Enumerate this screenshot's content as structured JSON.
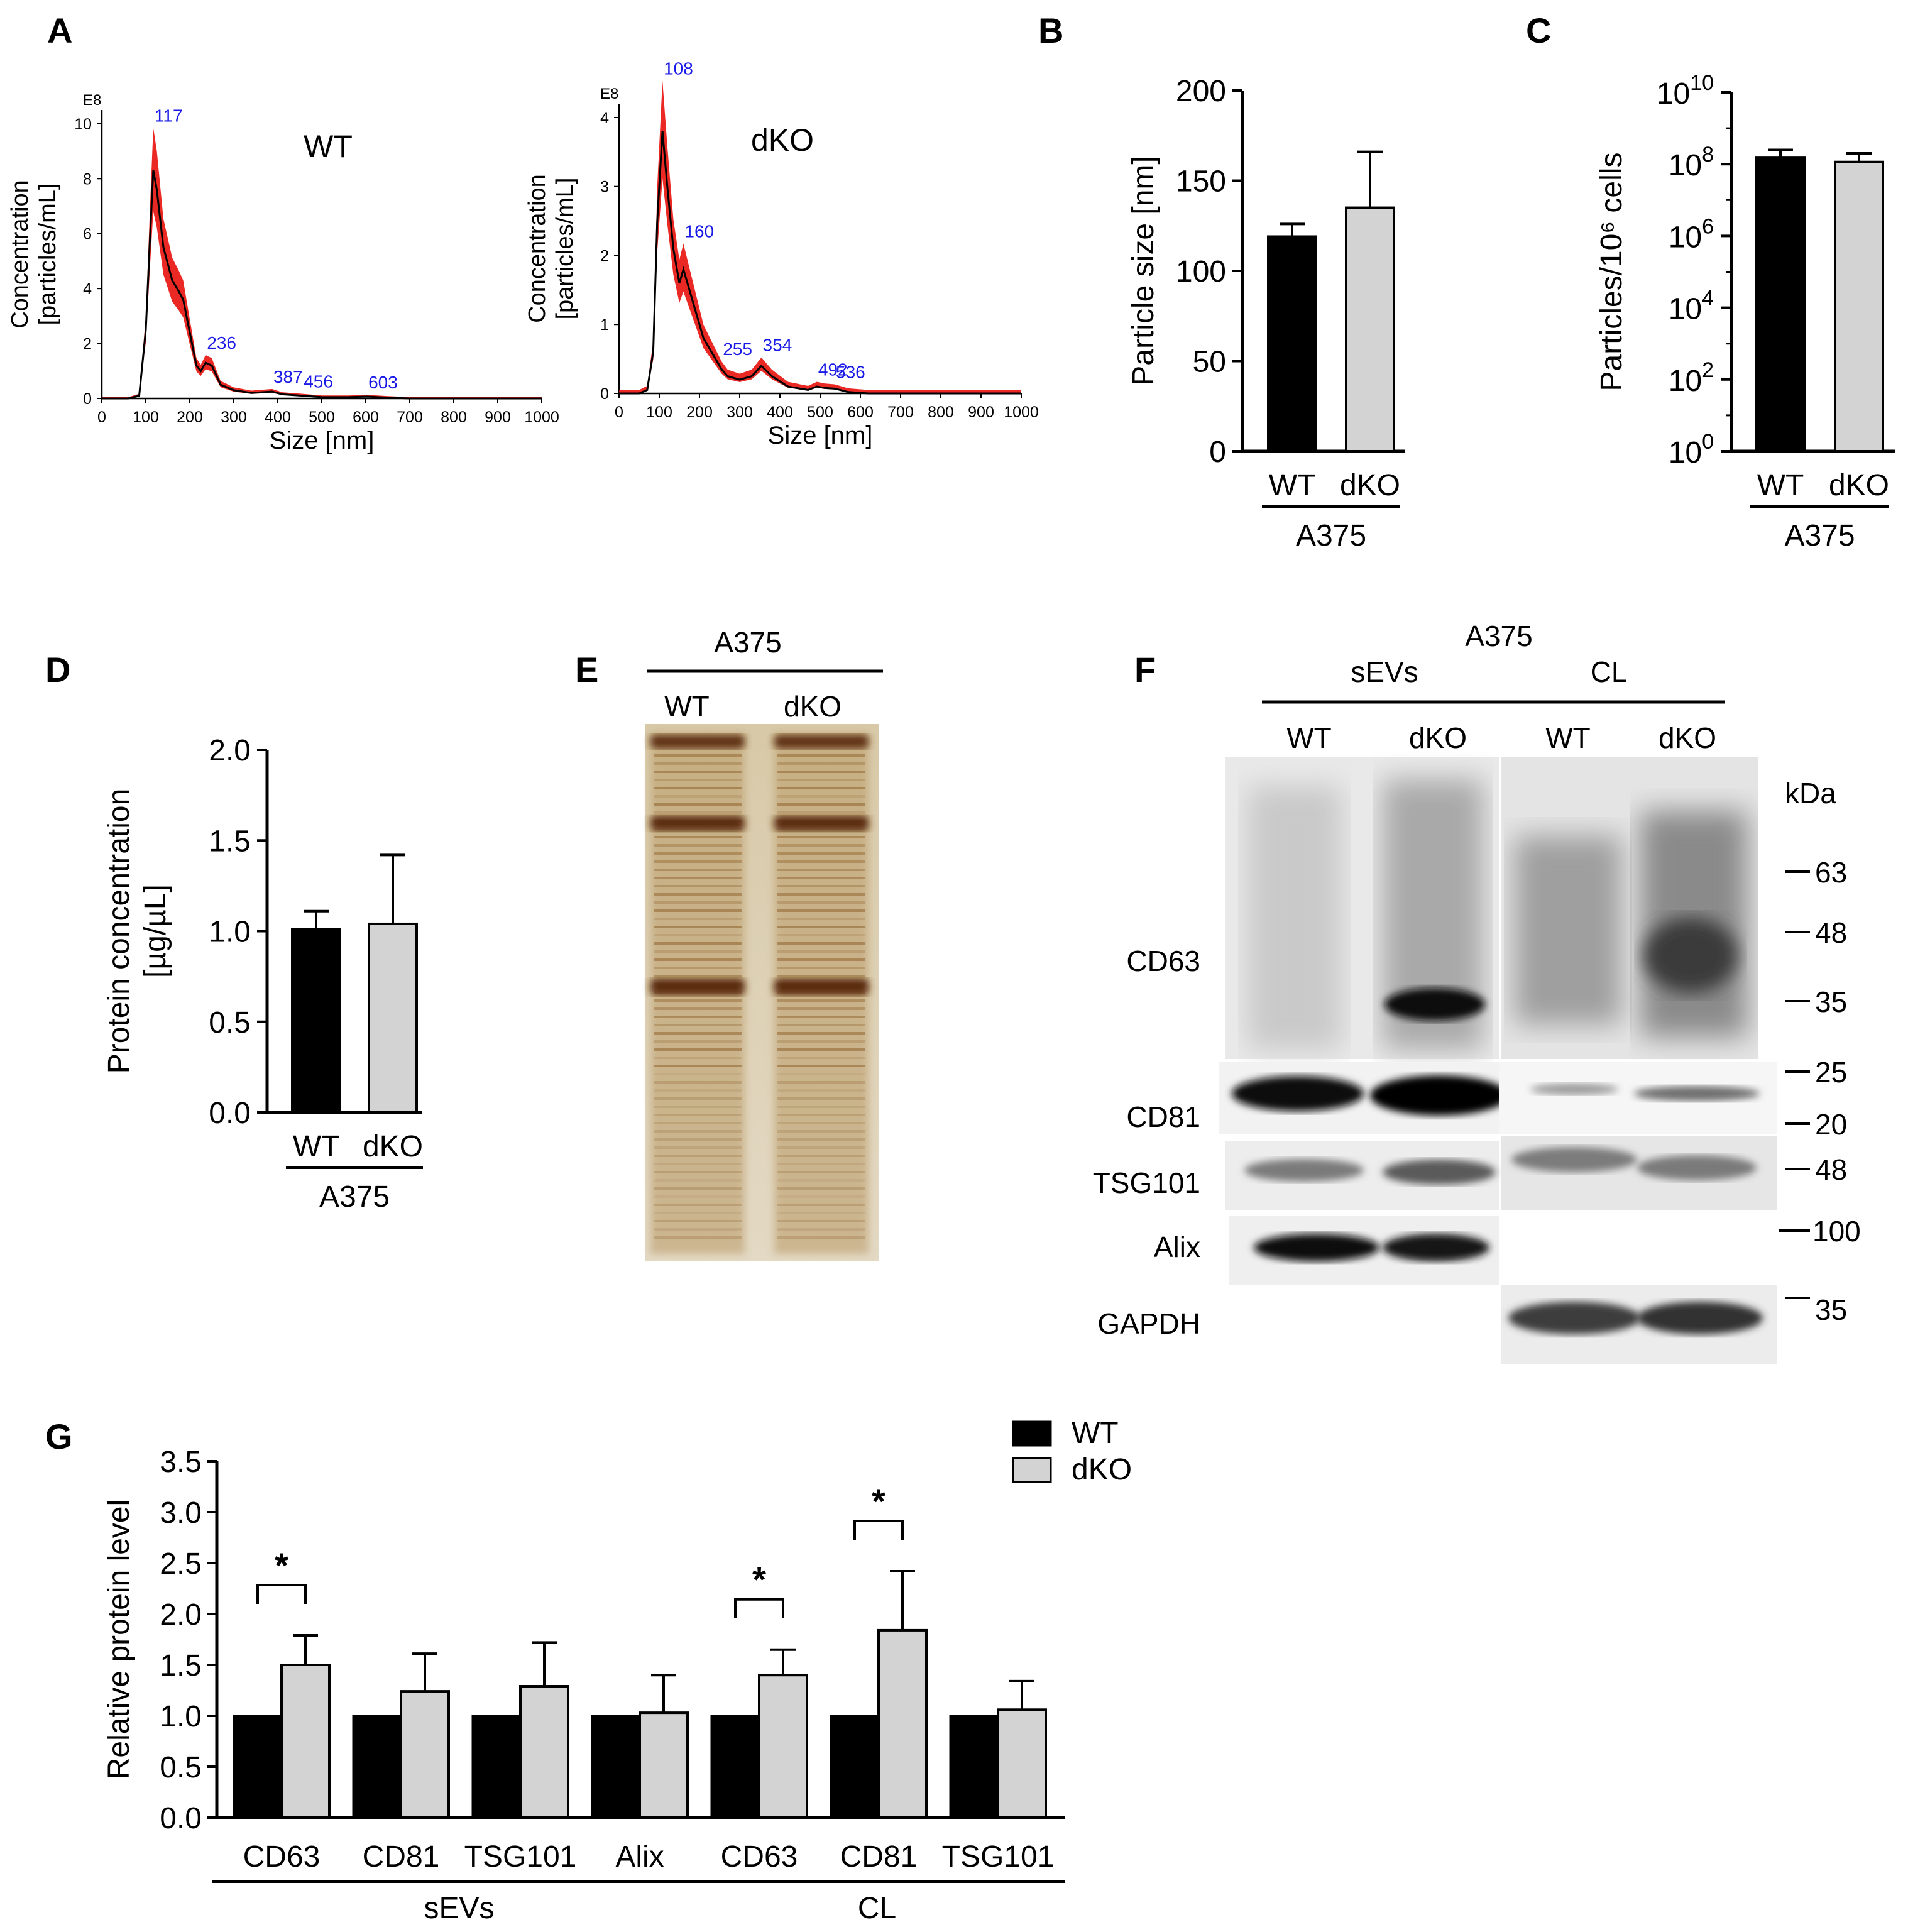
{
  "panels": {
    "A": "A",
    "B": "B",
    "C": "C",
    "D": "D",
    "E": "E",
    "F": "F",
    "G": "G"
  },
  "colors": {
    "wt": "#000000",
    "dko": "#d3d3d3",
    "peak_label": "#1a1ae6",
    "nta_band": "#e8120c",
    "blot_bg": "#ffffff"
  },
  "chart_data": [
    {
      "id": "A-WT",
      "type": "line",
      "title": "WT",
      "exponent": "E8",
      "xlabel": "Size [nm]",
      "ylabel_lines": [
        "Concentration",
        "[particles/mL]"
      ],
      "xlim": [
        0,
        1000
      ],
      "ylim": [
        0,
        10.5
      ],
      "xticks": [
        0,
        100,
        200,
        300,
        400,
        500,
        600,
        700,
        800,
        900,
        1000
      ],
      "yticks": [
        0,
        2,
        4,
        6,
        8,
        10
      ],
      "x": [
        0,
        60,
        85,
        100,
        110,
        117,
        125,
        140,
        150,
        160,
        175,
        185,
        200,
        215,
        225,
        236,
        250,
        270,
        300,
        340,
        387,
        410,
        456,
        500,
        560,
        603,
        650,
        700,
        1000
      ],
      "y": [
        0,
        0,
        0.1,
        2.5,
        6.0,
        8.3,
        7.6,
        5.5,
        4.9,
        4.3,
        3.9,
        3.6,
        2.4,
        1.2,
        1.0,
        1.3,
        1.2,
        0.5,
        0.3,
        0.2,
        0.25,
        0.15,
        0.1,
        0.05,
        0.05,
        0.07,
        0.03,
        0,
        0
      ],
      "peaks": [
        {
          "x": 117,
          "label": "117"
        },
        {
          "x": 236,
          "label": "236"
        },
        {
          "x": 387,
          "label": "387"
        },
        {
          "x": 456,
          "label": "456"
        },
        {
          "x": 603,
          "label": "603"
        }
      ]
    },
    {
      "id": "A-dKO",
      "type": "line",
      "title": "dKO",
      "exponent": "E8",
      "xlabel": "Size [nm]",
      "ylabel_lines": [
        "Concentration",
        "[particles/mL]"
      ],
      "xlim": [
        0,
        1000
      ],
      "ylim": [
        0,
        4.2
      ],
      "xticks": [
        0,
        100,
        200,
        300,
        400,
        500,
        600,
        700,
        800,
        900,
        1000
      ],
      "yticks": [
        0,
        1,
        2,
        3,
        4
      ],
      "x": [
        0,
        50,
        70,
        85,
        95,
        108,
        120,
        135,
        150,
        160,
        175,
        190,
        210,
        240,
        255,
        270,
        300,
        330,
        354,
        380,
        420,
        470,
        492,
        510,
        536,
        570,
        620,
        1000
      ],
      "y": [
        0,
        0,
        0.05,
        0.6,
        2.5,
        3.8,
        3.0,
        2.1,
        1.6,
        1.8,
        1.5,
        1.2,
        0.8,
        0.5,
        0.35,
        0.25,
        0.2,
        0.25,
        0.4,
        0.25,
        0.1,
        0.05,
        0.1,
        0.08,
        0.07,
        0.02,
        0,
        0
      ],
      "peaks": [
        {
          "x": 108,
          "label": "108"
        },
        {
          "x": 160,
          "label": "160"
        },
        {
          "x": 255,
          "label": "255"
        },
        {
          "x": 354,
          "label": "354"
        },
        {
          "x": 492,
          "label": "492"
        },
        {
          "x": 536,
          "label": "536"
        }
      ]
    },
    {
      "id": "B",
      "type": "bar",
      "ylabel": "Particle size [nm]",
      "ylim": [
        0,
        200
      ],
      "yticks": [
        0,
        50,
        100,
        150,
        200
      ],
      "categories": [
        "WT",
        "dKO"
      ],
      "group_label": "A375",
      "values": [
        119,
        135
      ],
      "errors": [
        7,
        31
      ]
    },
    {
      "id": "C",
      "type": "bar",
      "ylabel": "Particles/10⁶ cells",
      "log": true,
      "ylim": [
        0,
        10
      ],
      "ytick_powers": [
        0,
        2,
        4,
        6,
        8,
        10
      ],
      "categories": [
        "WT",
        "dKO"
      ],
      "group_label": "A375",
      "values": [
        150000000.0,
        115000000.0
      ],
      "errors_upper": [
        250000000.0,
        200000000.0
      ]
    },
    {
      "id": "D",
      "type": "bar",
      "ylabel_lines": [
        "Protein concentration",
        "[µg/µL]"
      ],
      "ylim": [
        0,
        2.0
      ],
      "yticks": [
        "0.0",
        "0.5",
        "1.0",
        "1.5",
        "2.0"
      ],
      "categories": [
        "WT",
        "dKO"
      ],
      "group_label": "A375",
      "values": [
        1.01,
        1.04
      ],
      "errors": [
        0.1,
        0.38
      ]
    },
    {
      "id": "G",
      "type": "bar",
      "ylabel": "Relative protein level",
      "ylim": [
        0,
        3.5
      ],
      "yticks": [
        "0.0",
        "0.5",
        "1.0",
        "1.5",
        "2.0",
        "2.5",
        "3.0",
        "3.5"
      ],
      "categories": [
        "CD63",
        "CD81",
        "TSG101",
        "Alix",
        "CD63",
        "CD81",
        "TSG101"
      ],
      "groups": [
        {
          "label": "sEVs",
          "from": 0,
          "to": 3
        },
        {
          "label": "CL",
          "from": 4,
          "to": 6
        }
      ],
      "series": [
        {
          "name": "WT",
          "values": [
            1,
            1,
            1,
            1,
            1,
            1,
            1
          ]
        },
        {
          "name": "dKO",
          "values": [
            1.5,
            1.24,
            1.29,
            1.03,
            1.4,
            1.84,
            1.06
          ],
          "errors": [
            0.29,
            0.37,
            0.43,
            0.37,
            0.25,
            0.58,
            0.28
          ]
        }
      ],
      "significance": [
        {
          "index": 0,
          "label": "*"
        },
        {
          "index": 4,
          "label": "*"
        },
        {
          "index": 5,
          "label": "*"
        }
      ]
    }
  ],
  "gel": {
    "group": "A375",
    "lanes": [
      "WT",
      "dKO"
    ]
  },
  "blot": {
    "title": "A375",
    "groups": [
      "sEVs",
      "CL"
    ],
    "lanes": [
      "WT",
      "dKO",
      "WT",
      "dKO"
    ],
    "kda_label": "kDa",
    "rows": [
      "CD63",
      "CD81",
      "TSG101",
      "Alix",
      "GAPDH"
    ],
    "markers": [
      "63",
      "48",
      "35",
      "25",
      "20",
      "48",
      "100",
      "35"
    ]
  }
}
